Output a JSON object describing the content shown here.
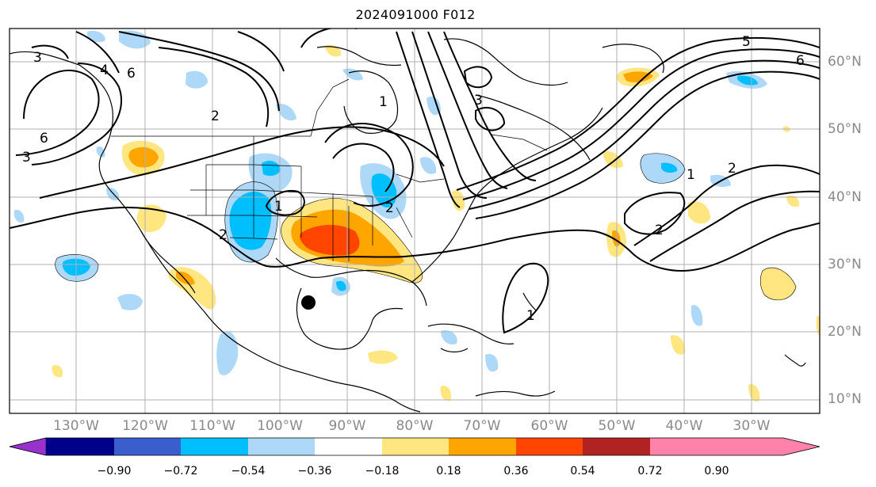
{
  "title": "2024091000 F012",
  "lat_labels": [
    "60°N",
    "50°N",
    "40°N",
    "30°N",
    "20°N",
    "10°N"
  ],
  "lon_labels": [
    "130°W",
    "120°W",
    "110°W",
    "100°W",
    "90°W",
    "80°W",
    "70°W",
    "60°W",
    "50°W",
    "40°W",
    "30°W"
  ],
  "colorbar": {
    "ticks": [
      "−0.90",
      "−0.72",
      "−0.54",
      "−0.36",
      "−0.18",
      "0.18",
      "0.36",
      "0.54",
      "0.72",
      "0.90"
    ],
    "colors": [
      "#9932cc",
      "#00008b",
      "#3a5fcd",
      "#00bfff",
      "#add8f7",
      "#ffffff",
      "#ffe680",
      "#ffa500",
      "#ff4500",
      "#b22222",
      "#ff82ab"
    ]
  },
  "contour_labels": [
    "3",
    "4",
    "6",
    "2",
    "1",
    "5"
  ],
  "marker": "storm-center-dot"
}
